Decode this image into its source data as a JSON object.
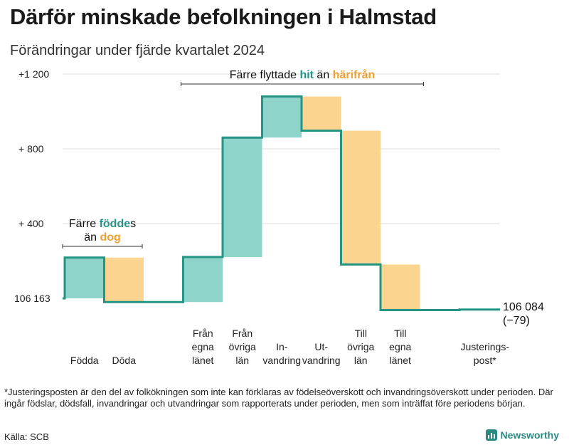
{
  "title": "Därför minskade befolkningen i Halmstad",
  "subtitle": "Förändringar under fjärde kvartalet 2024",
  "footnote": "*Justeringsposten är den del av folkökningen som inte kan förklaras av födelseöverskott och invandringsöverskott under perioden. Där ingår födslar, dödsfall, invandringar och utvandringar som rapporterats under perioden, men som inträffat före periodens början.",
  "source": "Källa: SCB",
  "brand": "Newsworthy",
  "colors": {
    "increase": "#8fd4cb",
    "decrease": "#fbd58f",
    "line": "#249485",
    "teal_text": "#249485",
    "orange_text": "#f0a030",
    "grid": "#dddddd"
  },
  "chart_data": {
    "type": "waterfall",
    "start_value": 106163,
    "start_label": "106 163",
    "end_value": 106084,
    "end_label": "106 084",
    "end_change_label": "(−79)",
    "y_ticks": [
      {
        "value": 1200,
        "label": "+1 200"
      },
      {
        "value": 800,
        "label": "+  800"
      },
      {
        "value": 400,
        "label": "+  400"
      }
    ],
    "ylim": [
      -80,
      1250
    ],
    "steps": [
      {
        "label": [
          "Födda"
        ],
        "change": 218
      },
      {
        "label": [
          "Döda"
        ],
        "change": -238
      },
      {
        "label": [
          "Från",
          "egna",
          "länet"
        ],
        "change": 241
      },
      {
        "label": [
          "Från",
          "övriga",
          "län"
        ],
        "change": 639
      },
      {
        "label": [
          "In-",
          "vandring"
        ],
        "change": 220
      },
      {
        "label": [
          "Ut-",
          "vandring"
        ],
        "change": -183
      },
      {
        "label": [
          "Till",
          "övriga",
          "län"
        ],
        "change": -716
      },
      {
        "label": [
          "Till",
          "egna",
          "länet"
        ],
        "change": -244
      },
      {
        "label": [
          "Justerings-",
          "post*"
        ],
        "change": 3
      }
    ],
    "annotations": [
      {
        "lines": [
          [
            "Färre ",
            "födde",
            "s"
          ],
          [
            "än ",
            "dog",
            ""
          ]
        ],
        "span": [
          0,
          1
        ]
      },
      {
        "lines": [
          [
            "Färre flyttade ",
            "hit",
            " än ",
            "härifrån"
          ]
        ],
        "span": [
          2,
          7
        ]
      }
    ]
  }
}
